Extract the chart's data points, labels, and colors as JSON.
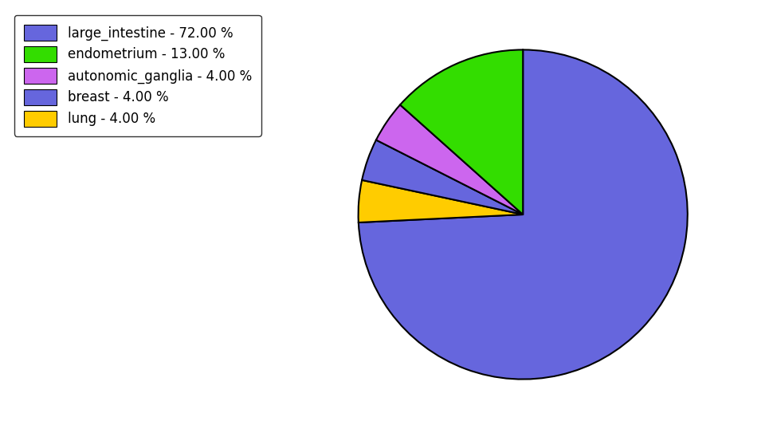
{
  "labels": [
    "large_intestine",
    "lung",
    "breast",
    "autonomic_ganglia",
    "endometrium"
  ],
  "values": [
    72.0,
    4.0,
    4.0,
    4.0,
    13.0
  ],
  "colors": [
    "#6666dd",
    "#ffcc00",
    "#6666dd",
    "#cc66ee",
    "#33dd00"
  ],
  "legend_labels": [
    "large_intestine - 72.00 %",
    "endometrium - 13.00 %",
    "autonomic_ganglia - 4.00 %",
    "breast - 4.00 %",
    "lung - 4.00 %"
  ],
  "legend_colors": [
    "#6666dd",
    "#33dd00",
    "#cc66ee",
    "#6666dd",
    "#ffcc00"
  ],
  "startangle": 90,
  "figsize": [
    9.65,
    5.38
  ],
  "dpi": 100
}
